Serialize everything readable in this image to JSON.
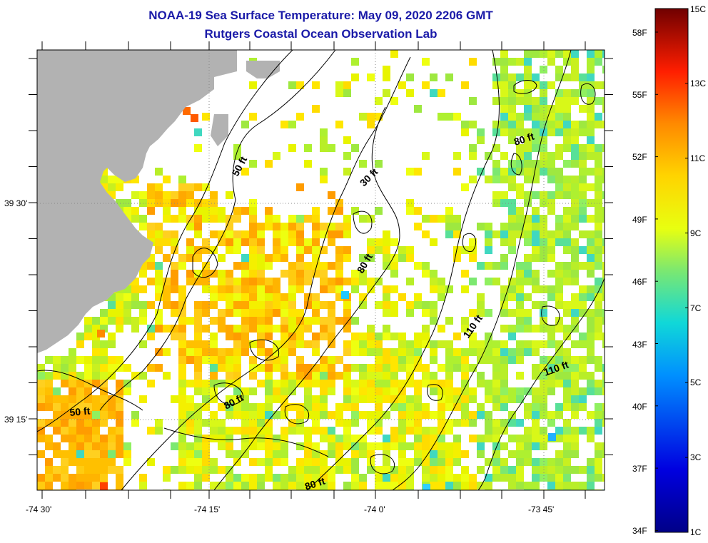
{
  "title_line1": "NOAA-19 Sea Surface Temperature:  May 09, 2020 2206 GMT",
  "title_line2": "Rutgers Coastal Ocean Observation Lab",
  "lat_labels": [
    "39 30'",
    "39 15'"
  ],
  "lon_labels": [
    "-74 30'",
    "-74 15'",
    "-74 0'",
    "-73 45'"
  ],
  "contour_labels": [
    "50 ft",
    "30 ft",
    "80 ft",
    "80 ft",
    "50 ft",
    "80 ft",
    "110 ft",
    "110 ft",
    "80 ft"
  ],
  "colorbar": {
    "celsius_labels": [
      "15C",
      "13C",
      "11C",
      "9C",
      "7C",
      "5C",
      "3C",
      "1C"
    ],
    "fahrenheit_labels": [
      "58F",
      "55F",
      "52F",
      "49F",
      "46F",
      "43F",
      "40F",
      "37F",
      "34F"
    ],
    "colors": [
      "#7a0000",
      "#e00000",
      "#ff7a00",
      "#ffd800",
      "#e6ff00",
      "#86e86a",
      "#1cd2d8",
      "#006cff",
      "#0000c8",
      "#000088"
    ]
  },
  "colors": {
    "land": "#b2b2b2",
    "title": "#1a1aa8"
  }
}
